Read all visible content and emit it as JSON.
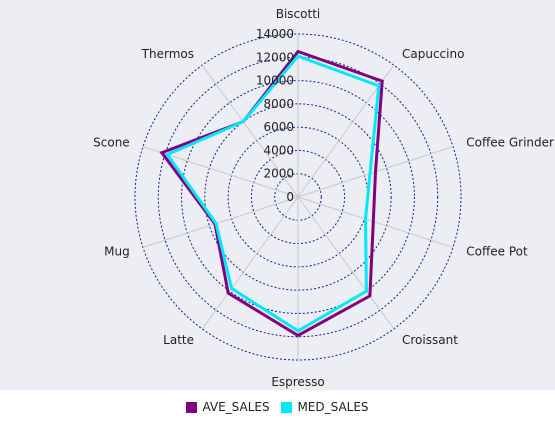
{
  "chart_data": {
    "type": "radar",
    "categories": [
      "Biscotti",
      "Capuccino",
      "Coffee Grinder",
      "Coffee Pot",
      "Croissant",
      "Espresso",
      "Latte",
      "Mug",
      "Scone",
      "Thermos"
    ],
    "series": [
      {
        "name": "AVE_SALES",
        "color": "#800080",
        "values": [
          12500,
          12300,
          7000,
          6800,
          10500,
          11900,
          10200,
          7500,
          12300,
          8000
        ]
      },
      {
        "name": "MED_SALES",
        "color": "#00e8ff",
        "values": [
          12100,
          11800,
          6500,
          6100,
          10000,
          11500,
          9700,
          7400,
          11800,
          8000
        ]
      }
    ],
    "rlim": [
      0,
      14000
    ],
    "ticks": [
      "0",
      "2000",
      "4000",
      "6000",
      "8000",
      "10000",
      "12000",
      "14000"
    ],
    "tick_values": [
      0,
      2000,
      4000,
      6000,
      8000,
      10000,
      12000,
      14000
    ],
    "grid": true,
    "legend_position": "bottom",
    "colors": {
      "plot_background": "#eceef3",
      "grid_ring": "#1a1a9a",
      "spoke": "#c8c8c8"
    }
  }
}
